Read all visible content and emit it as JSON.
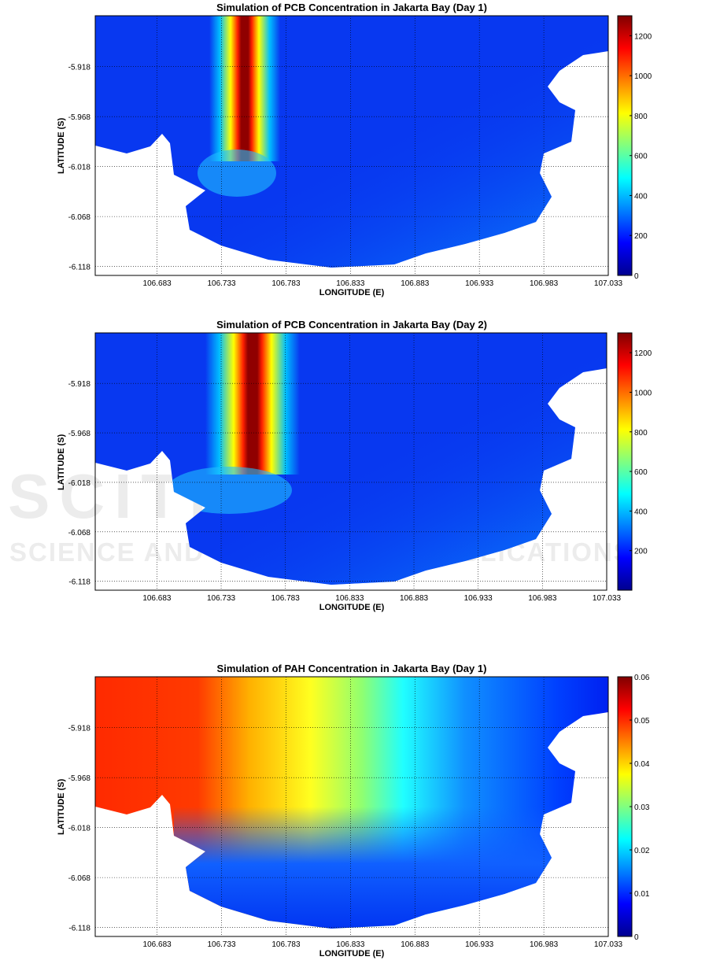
{
  "watermark": {
    "line1": "SCITEPRESS",
    "line2": "SCIENCE AND TECHNOLOGY PUBLICATIONS"
  },
  "chart_data": [
    {
      "type": "heatmap",
      "title": "Simulation of PCB Concentration in Jakarta Bay (Day 1)",
      "xlabel": "LONGITUDE (E)",
      "ylabel": "LATITUDE (S)",
      "xticks": [
        "106.683",
        "106.733",
        "106.783",
        "106.833",
        "106.883",
        "106.933",
        "106.983",
        "107.033"
      ],
      "yticks": [
        "-5.918",
        "-5.968",
        "-6.018",
        "-6.068",
        "-6.118"
      ],
      "xlim": [
        106.635,
        107.033
      ],
      "ylim": [
        -6.127,
        -5.867
      ],
      "grid": true,
      "colormap": "jet",
      "clim": [
        0,
        1300
      ],
      "colorbar_ticks": [
        "0",
        "200",
        "400",
        "600",
        "800",
        "1000",
        "1200"
      ],
      "pattern": "narrow high-concentration plume near 106.75 E extending north from coast"
    },
    {
      "type": "heatmap",
      "title": "Simulation of PCB Concentration in Jakarta Bay (Day 2)",
      "xlabel": "LONGITUDE (E)",
      "ylabel": "LATITUDE (S)",
      "xticks": [
        "106.683",
        "106.733",
        "106.783",
        "106.833",
        "106.883",
        "106.933",
        "106.983",
        "107.033"
      ],
      "yticks": [
        "-5.918",
        "-5.968",
        "-6.018",
        "-6.068",
        "-6.118"
      ],
      "xlim": [
        106.635,
        107.033
      ],
      "ylim": [
        -6.127,
        -5.867
      ],
      "grid": true,
      "colormap": "jet",
      "clim": [
        0,
        1300
      ],
      "colorbar_ticks": [
        "200",
        "400",
        "600",
        "800",
        "1000",
        "1200"
      ],
      "pattern": "wider plume near 106.76 E, spreading along coast"
    },
    {
      "type": "heatmap",
      "title": "Simulation of PAH Concentration in Jakarta Bay (Day 1)",
      "xlabel": "LONGITUDE (E)",
      "ylabel": "LATITUDE (S)",
      "xticks": [
        "106.683",
        "106.733",
        "106.783",
        "106.833",
        "106.883",
        "106.933",
        "106.983",
        "107.033"
      ],
      "yticks": [
        "-5.918",
        "-5.968",
        "-6.018",
        "-6.068",
        "-6.118"
      ],
      "xlim": [
        106.635,
        107.033
      ],
      "ylim": [
        -6.127,
        -5.867
      ],
      "grid": true,
      "colormap": "jet",
      "clim": [
        0,
        0.06
      ],
      "colorbar_ticks": [
        "0",
        "0.01",
        "0.02",
        "0.03",
        "0.04",
        "0.05",
        "0.06"
      ],
      "pattern": "high values in west decreasing eastward and toward south coast"
    }
  ]
}
